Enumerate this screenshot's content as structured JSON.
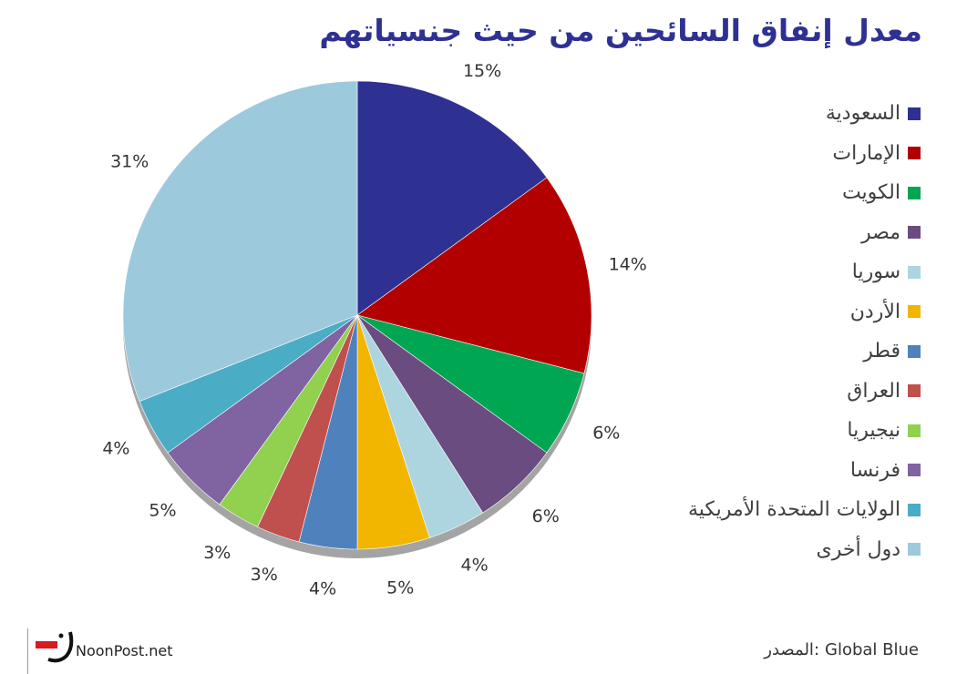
{
  "title": "معدل إنفاق السائحين من حيث جنسياتهم",
  "source": {
    "label": "المصدر:",
    "value": "Global Blue"
  },
  "brand": {
    "site": "NoonPost.net"
  },
  "chart_data": {
    "type": "pie",
    "start_angle_deg": 0,
    "direction": "clockwise",
    "legend_position": "right",
    "slices": [
      {
        "label": "السعودية",
        "value": 15,
        "display": "15%",
        "color": "#2e3192"
      },
      {
        "label": "الإمارات",
        "value": 14,
        "display": "14%",
        "color": "#b20000"
      },
      {
        "label": "الكويت",
        "value": 6,
        "display": "6%",
        "color": "#00a651"
      },
      {
        "label": "مصر",
        "value": 6,
        "display": "6%",
        "color": "#6a4c80"
      },
      {
        "label": "سوريا",
        "value": 4,
        "display": "4%",
        "color": "#add5e0"
      },
      {
        "label": "الأردن",
        "value": 5,
        "display": "5%",
        "color": "#f2b600"
      },
      {
        "label": "قطر",
        "value": 4,
        "display": "4%",
        "color": "#4f81bd"
      },
      {
        "label": "العراق",
        "value": 3,
        "display": "3%",
        "color": "#c0504d"
      },
      {
        "label": "نيجيريا",
        "value": 3,
        "display": "3%",
        "color": "#92d050"
      },
      {
        "label": "فرنسا",
        "value": 5,
        "display": "5%",
        "color": "#8064a2"
      },
      {
        "label": "الولايات المتحدة الأمريكية",
        "value": 4,
        "display": "4%",
        "color": "#4bacc6"
      },
      {
        "label": "دول أخرى",
        "value": 31,
        "display": "31%",
        "color": "#9dc9dc"
      }
    ]
  }
}
